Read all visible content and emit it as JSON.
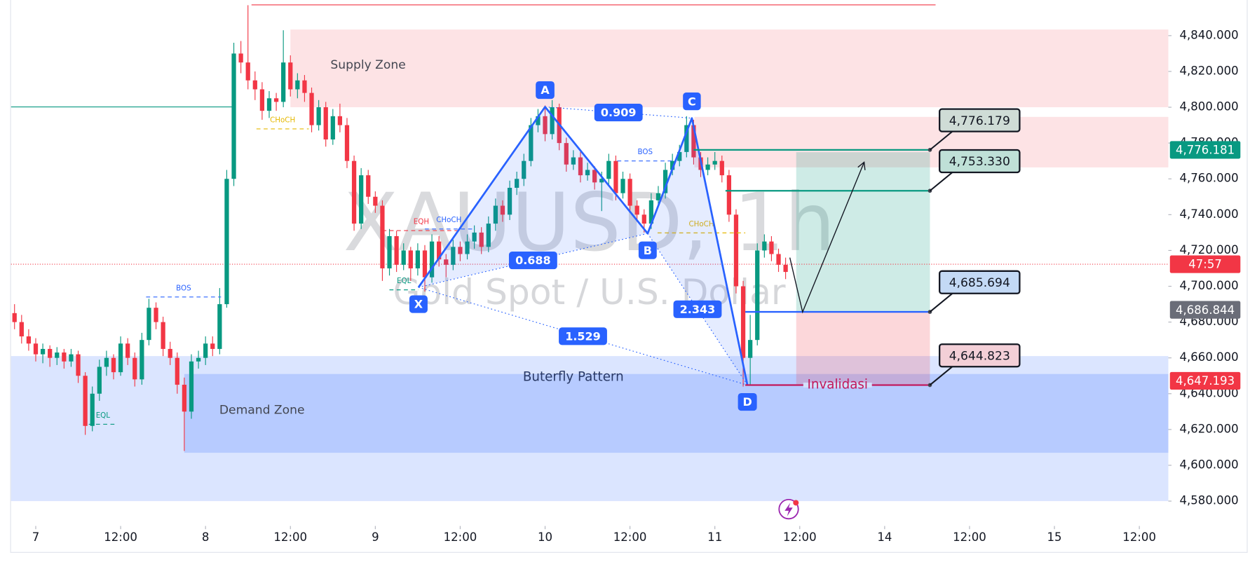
{
  "chart_data": {
    "type": "candlestick",
    "title": "XAUUSD, 1h",
    "subtitle": "Gold Spot / U.S. Dollar",
    "xlim": [
      -3.5,
      160.1
    ],
    "ylim": [
      4567.0,
      4859.9
    ],
    "up_color": "#089981",
    "down_color": "#f23645",
    "xticks": [
      {
        "value": 0,
        "label": "7"
      },
      {
        "value": 12,
        "label": "12:00"
      },
      {
        "value": 24,
        "label": "8"
      },
      {
        "value": 36,
        "label": "12:00"
      },
      {
        "value": 48,
        "label": "9"
      },
      {
        "value": 60,
        "label": "12:00"
      },
      {
        "value": 72,
        "label": "10"
      },
      {
        "value": 84,
        "label": "12:00"
      },
      {
        "value": 96,
        "label": "11"
      },
      {
        "value": 108,
        "label": "12:00"
      },
      {
        "value": 120,
        "label": "14"
      },
      {
        "value": 132,
        "label": "12:00"
      },
      {
        "value": 144,
        "label": "15"
      },
      {
        "value": 156,
        "label": "12:00"
      }
    ],
    "yticks": [
      {
        "value": 4580,
        "label": "4,580.000"
      },
      {
        "value": 4600,
        "label": "4,600.000"
      },
      {
        "value": 4620,
        "label": "4,620.000"
      },
      {
        "value": 4640,
        "label": "4,640.000"
      },
      {
        "value": 4660,
        "label": "4,660.000"
      },
      {
        "value": 4680,
        "label": "4,680.000"
      },
      {
        "value": 4700,
        "label": "4,700.000"
      },
      {
        "value": 4720,
        "label": "4,720.000"
      },
      {
        "value": 4740,
        "label": "4,740.000"
      },
      {
        "value": 4760,
        "label": "4,760.000"
      },
      {
        "value": 4780,
        "label": "4,780.000"
      },
      {
        "value": 4800,
        "label": "4,800.000"
      },
      {
        "value": 4820,
        "label": "4,820.000"
      },
      {
        "value": 4840,
        "label": "4,840.000"
      }
    ],
    "candles": [
      [
        -3,
        4685,
        4690,
        4676,
        4680
      ],
      [
        -2,
        4680,
        4684,
        4668,
        4672
      ],
      [
        -1,
        4672,
        4676,
        4664,
        4668
      ],
      [
        0,
        4668,
        4671,
        4658,
        4662
      ],
      [
        1,
        4662,
        4668,
        4657,
        4665
      ],
      [
        2,
        4665,
        4667,
        4655,
        4660
      ],
      [
        3,
        4660,
        4666,
        4656,
        4663
      ],
      [
        4,
        4663,
        4665,
        4654,
        4658
      ],
      [
        5,
        4658,
        4665,
        4655,
        4662
      ],
      [
        6,
        4662,
        4664,
        4646,
        4650
      ],
      [
        7,
        4650,
        4652,
        4617,
        4622
      ],
      [
        8,
        4622,
        4644,
        4619,
        4640
      ],
      [
        9,
        4640,
        4659,
        4636,
        4655
      ],
      [
        10,
        4655,
        4664,
        4650,
        4660
      ],
      [
        11,
        4660,
        4662,
        4648,
        4652
      ],
      [
        12,
        4652,
        4672,
        4650,
        4668
      ],
      [
        13,
        4668,
        4671,
        4656,
        4660
      ],
      [
        14,
        4660,
        4663,
        4644,
        4648
      ],
      [
        15,
        4648,
        4674,
        4645,
        4670
      ],
      [
        16,
        4670,
        4693,
        4667,
        4688
      ],
      [
        17,
        4688,
        4691,
        4676,
        4680
      ],
      [
        18,
        4680,
        4683,
        4661,
        4665
      ],
      [
        19,
        4665,
        4669,
        4656,
        4660
      ],
      [
        20,
        4660,
        4663,
        4640,
        4645
      ],
      [
        21,
        4645,
        4649,
        4608,
        4630
      ],
      [
        22,
        4630,
        4662,
        4626,
        4658
      ],
      [
        23,
        4658,
        4664,
        4654,
        4660
      ],
      [
        24,
        4660,
        4672,
        4656,
        4668
      ],
      [
        25,
        4668,
        4672,
        4661,
        4665
      ],
      [
        26,
        4665,
        4699,
        4662,
        4690
      ],
      [
        27,
        4690,
        4765,
        4688,
        4760
      ],
      [
        28,
        4760,
        4836,
        4756,
        4830
      ],
      [
        29,
        4830,
        4837,
        4819,
        4825
      ],
      [
        30,
        4825,
        4857,
        4810,
        4815
      ],
      [
        31,
        4815,
        4820,
        4804,
        4810
      ],
      [
        32,
        4810,
        4814,
        4793,
        4798
      ],
      [
        33,
        4798,
        4809,
        4794,
        4805
      ],
      [
        34,
        4805,
        4808,
        4798,
        4803
      ],
      [
        35,
        4803,
        4843,
        4800,
        4825
      ],
      [
        36,
        4825,
        4829,
        4806,
        4810
      ],
      [
        37,
        4810,
        4819,
        4805,
        4815
      ],
      [
        38,
        4815,
        4818,
        4803,
        4808
      ],
      [
        39,
        4808,
        4811,
        4786,
        4790
      ],
      [
        40,
        4790,
        4804,
        4787,
        4800
      ],
      [
        41,
        4800,
        4803,
        4778,
        4782
      ],
      [
        42,
        4782,
        4799,
        4779,
        4795
      ],
      [
        43,
        4795,
        4802,
        4786,
        4790
      ],
      [
        44,
        4790,
        4794,
        4766,
        4770
      ],
      [
        45,
        4770,
        4773,
        4731,
        4735
      ],
      [
        46,
        4735,
        4766,
        4732,
        4762
      ],
      [
        47,
        4762,
        4765,
        4746,
        4750
      ],
      [
        48,
        4750,
        4753,
        4741,
        4745
      ],
      [
        49,
        4745,
        4748,
        4703,
        4710
      ],
      [
        50,
        4710,
        4732,
        4706,
        4728
      ],
      [
        51,
        4728,
        4731,
        4708,
        4712
      ],
      [
        52,
        4712,
        4724,
        4709,
        4720
      ],
      [
        53,
        4720,
        4722,
        4703,
        4710
      ],
      [
        54,
        4710,
        4724,
        4706,
        4720
      ],
      [
        55,
        4720,
        4723,
        4697,
        4705
      ],
      [
        56,
        4705,
        4729,
        4702,
        4725
      ],
      [
        57,
        4725,
        4728,
        4711,
        4715
      ],
      [
        58,
        4715,
        4718,
        4705,
        4712
      ],
      [
        59,
        4712,
        4726,
        4709,
        4722
      ],
      [
        60,
        4722,
        4725,
        4714,
        4718
      ],
      [
        61,
        4718,
        4729,
        4715,
        4725
      ],
      [
        62,
        4725,
        4734,
        4721,
        4730
      ],
      [
        63,
        4730,
        4733,
        4718,
        4722
      ],
      [
        64,
        4722,
        4739,
        4719,
        4735
      ],
      [
        65,
        4735,
        4749,
        4731,
        4745
      ],
      [
        66,
        4745,
        4748,
        4736,
        4740
      ],
      [
        67,
        4740,
        4759,
        4737,
        4755
      ],
      [
        68,
        4755,
        4764,
        4751,
        4760
      ],
      [
        69,
        4760,
        4774,
        4756,
        4770
      ],
      [
        70,
        4770,
        4794,
        4767,
        4790
      ],
      [
        71,
        4790,
        4799,
        4786,
        4795
      ],
      [
        72,
        4795,
        4801,
        4781,
        4785
      ],
      [
        73,
        4785,
        4804,
        4782,
        4800
      ],
      [
        74,
        4800,
        4802,
        4776,
        4780
      ],
      [
        75,
        4780,
        4783,
        4764,
        4768
      ],
      [
        76,
        4768,
        4776,
        4765,
        4772
      ],
      [
        77,
        4772,
        4775,
        4758,
        4762
      ],
      [
        78,
        4762,
        4769,
        4759,
        4765
      ],
      [
        79,
        4765,
        4767,
        4754,
        4758
      ],
      [
        80,
        4758,
        4764,
        4742,
        4760
      ],
      [
        81,
        4760,
        4774,
        4757,
        4770
      ],
      [
        82,
        4770,
        4773,
        4748,
        4752
      ],
      [
        83,
        4752,
        4764,
        4749,
        4760
      ],
      [
        84,
        4760,
        4763,
        4741,
        4745
      ],
      [
        85,
        4745,
        4748,
        4736,
        4740
      ],
      [
        86,
        4740,
        4743,
        4730,
        4735
      ],
      [
        87,
        4735,
        4752,
        4732,
        4748
      ],
      [
        88,
        4748,
        4756,
        4745,
        4752
      ],
      [
        89,
        4752,
        4769,
        4749,
        4765
      ],
      [
        90,
        4765,
        4774,
        4762,
        4770
      ],
      [
        91,
        4770,
        4779,
        4767,
        4775
      ],
      [
        92,
        4775,
        4795,
        4772,
        4790
      ],
      [
        93,
        4790,
        4793,
        4768,
        4772
      ],
      [
        94,
        4772,
        4775,
        4761,
        4765
      ],
      [
        95,
        4765,
        4772,
        4762,
        4768
      ],
      [
        96,
        4768,
        4775,
        4765,
        4770
      ],
      [
        97,
        4770,
        4773,
        4758,
        4762
      ],
      [
        98,
        4762,
        4765,
        4736,
        4740
      ],
      [
        99,
        4740,
        4743,
        4696,
        4700
      ],
      [
        100,
        4700,
        4703,
        4644,
        4660
      ],
      [
        101,
        4660,
        4684,
        4645,
        4670
      ],
      [
        102,
        4670,
        4724,
        4667,
        4720
      ],
      [
        103,
        4720,
        4729,
        4716,
        4725
      ],
      [
        104,
        4725,
        4728,
        4714,
        4718
      ],
      [
        105,
        4718,
        4721,
        4708,
        4712
      ],
      [
        106,
        4712,
        4716,
        4704,
        4708
      ]
    ],
    "zones": [
      {
        "name": "Supply Zone",
        "range": [
          4800,
          4843.4
        ],
        "x": [
          36,
          160.1
        ],
        "color": "rgba(242,54,69,0.14)"
      },
      {
        "range": [
          4766.4,
          4794.6
        ],
        "x": [
          93.1,
          160.1
        ],
        "color": "rgba(242,54,69,0.14)"
      },
      {
        "range": [
          4580,
          4661
        ],
        "x": [
          -3.5,
          160.1
        ],
        "color": "rgba(41,98,255,0.17)"
      },
      {
        "name": "Demand Zone",
        "range": [
          4607,
          4651
        ],
        "x": [
          21,
          160.1
        ],
        "color": "rgba(41,98,255,0.2)"
      }
    ],
    "lines": [
      {
        "value": 4857.2,
        "x": [
          30.5,
          127.2
        ],
        "color": "#f23645"
      },
      {
        "value": 4800.2,
        "x": [
          -3.5,
          27.9
        ],
        "color": "#089981"
      }
    ],
    "current_price": {
      "value": 4712.3,
      "countdown": "47:57",
      "color": "#f23645"
    },
    "trade": {
      "x": [
        107.5,
        126.4
      ],
      "target": 4774.9,
      "entry": 4685.5,
      "stop": 4645.3
    },
    "projection": {
      "x": [
        106.6,
        108.4,
        117.1
      ],
      "values": [
        4716,
        4685.6,
        4769.3
      ]
    },
    "markers": [
      {
        "label": "BOS",
        "value": 4694.0,
        "x": [
          15.6,
          26.2
        ],
        "color": "#2962ff"
      },
      {
        "label": "CHoCH",
        "value": 4787.9,
        "x": [
          31.2,
          38.6
        ],
        "color": "#e6b800"
      },
      {
        "label": "EQL",
        "value": 4622.9,
        "x": [
          7.5,
          11.5
        ],
        "color": "#089981"
      },
      {
        "label": "EQH",
        "value": 4731.1,
        "x": [
          49,
          60
        ],
        "color": "#f23645"
      },
      {
        "label": "CHoCH",
        "value": 4732.0,
        "x": [
          55,
          61.8
        ],
        "color": "#2962ff"
      },
      {
        "label": "EQL",
        "value": 4698.0,
        "x": [
          50,
          54.1
        ],
        "color": "#089981"
      },
      {
        "label": "BOS",
        "value": 4770.0,
        "x": [
          82.2,
          90.1
        ],
        "color": "#2962ff"
      },
      {
        "label": "CHoCH",
        "value": 4729.8,
        "x": [
          87.9,
          100.3
        ],
        "color": "#e6b800"
      }
    ],
    "pattern": {
      "name": "Buterfly Pattern",
      "color": "#2962ff",
      "points": [
        {
          "label": "X",
          "x": 54.1,
          "value": 4699.4
        },
        {
          "label": "A",
          "x": 72,
          "value": 4800.2
        },
        {
          "label": "B",
          "x": 86.5,
          "value": 4729.5
        },
        {
          "label": "C",
          "x": 92.75,
          "value": 4793.9
        },
        {
          "label": "D",
          "x": 100.6,
          "value": 4644.8
        }
      ],
      "ratios": [
        {
          "value": 0.909,
          "from": "A",
          "to": "C"
        },
        {
          "value": 0.688,
          "from": "X",
          "to": "B"
        },
        {
          "value": 1.529,
          "from": "X",
          "to": "D"
        },
        {
          "value": 2.343,
          "from": "B",
          "to": "D"
        }
      ]
    },
    "levels": [
      {
        "value": 4776.179,
        "label": "4,776.179",
        "x": [
          93,
          126.4
        ],
        "color": "#089981",
        "fill": "#cfdcd6"
      },
      {
        "value": 4753.33,
        "label": "4,753.330",
        "x": [
          97.5,
          126.4
        ],
        "color": "#089981",
        "fill": "#bfe0d7"
      },
      {
        "value": 4685.694,
        "label": "4,685.694",
        "x": [
          100.3,
          126.4
        ],
        "color": "#2962ff",
        "fill": "#c3d9f5"
      },
      {
        "value": 4644.823,
        "label": "4,644.823",
        "x": [
          100.3,
          126.4
        ],
        "color": "#c2185b",
        "fill": "#f3cfd7",
        "annotation": "Invalidasi"
      }
    ],
    "price_labels": [
      {
        "value": 4776.181,
        "label": "4,776.181",
        "color": "#089981"
      },
      {
        "value": 4686.844,
        "label": "4,686.844",
        "color": "#6a6d78"
      },
      {
        "value": 4647.193,
        "label": "4,647.193",
        "color": "#f23645"
      }
    ]
  }
}
